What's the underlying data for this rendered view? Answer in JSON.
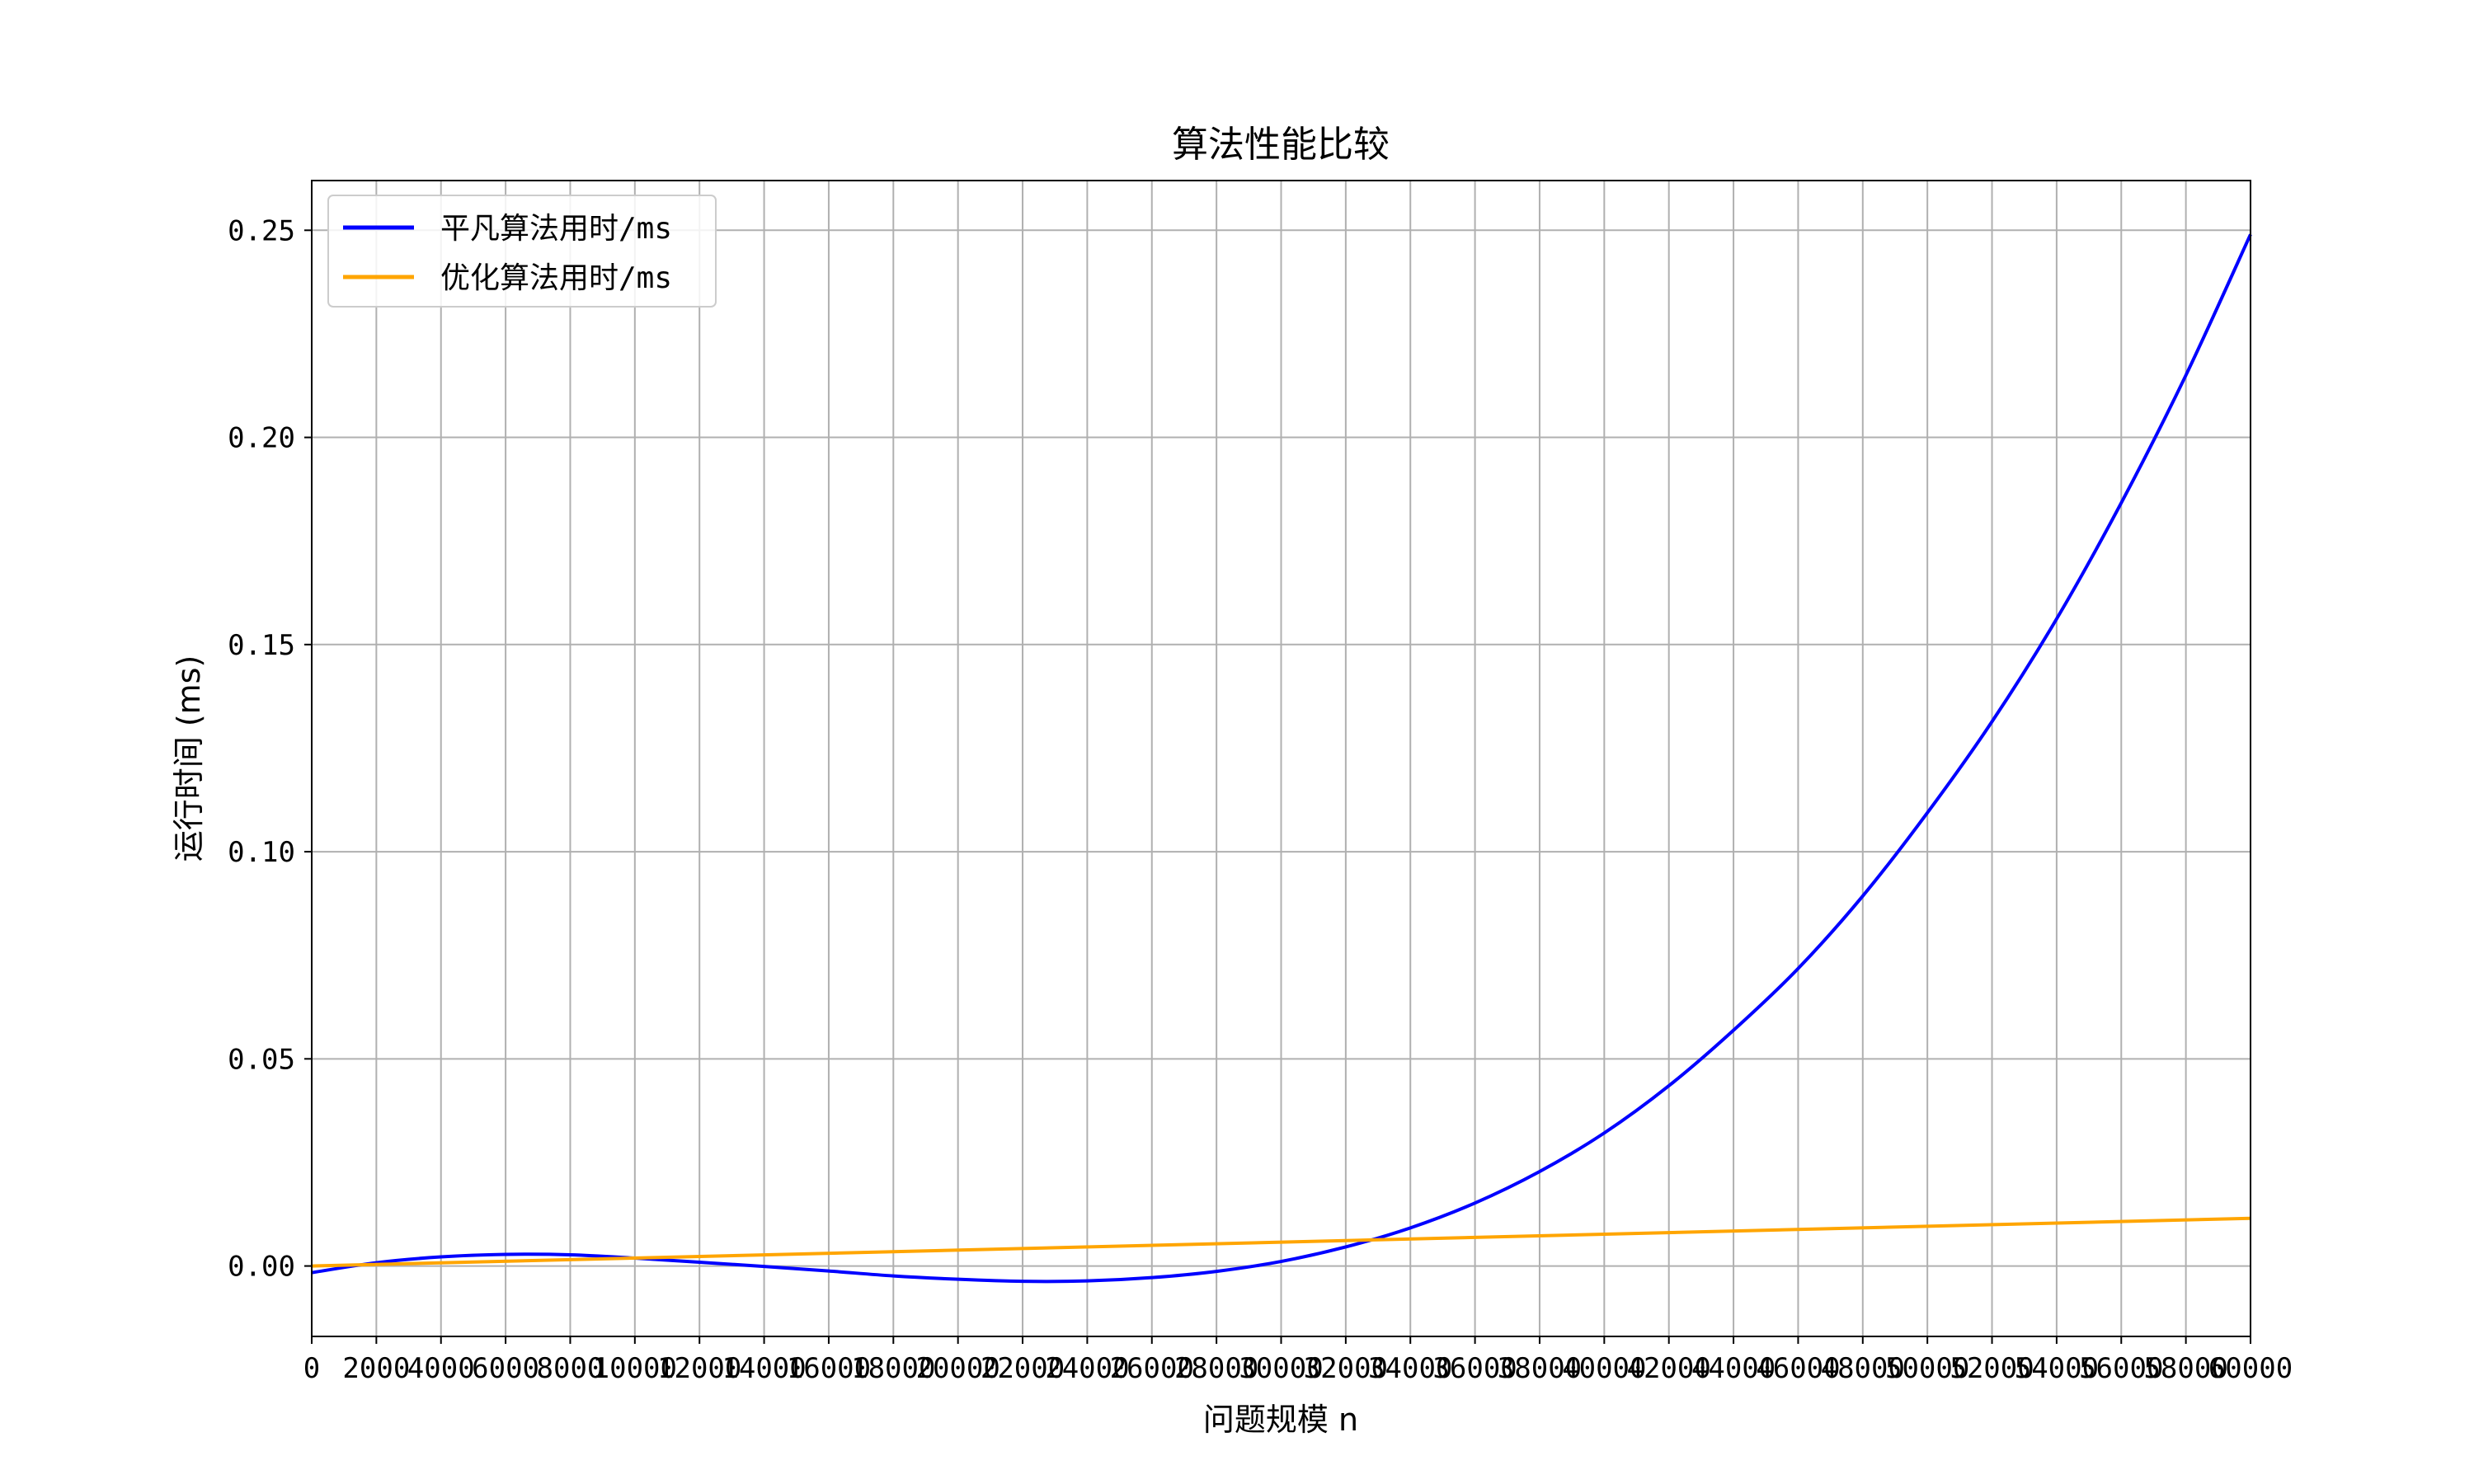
{
  "chart_data": {
    "type": "line",
    "title": "算法性能比较",
    "xlabel": "问题规模 n",
    "ylabel": "运行时间 (ms)",
    "xlim": [
      0,
      60000
    ],
    "ylim": [
      -0.017,
      0.262
    ],
    "x_ticks": [
      0,
      2000,
      4000,
      6000,
      8000,
      10000,
      12000,
      14000,
      16000,
      18000,
      20000,
      22000,
      24000,
      26000,
      28000,
      30000,
      32000,
      34000,
      36000,
      38000,
      40000,
      42000,
      44000,
      46000,
      48000,
      50000,
      52000,
      54000,
      56000,
      58000,
      60000
    ],
    "x_tick_labels": [
      "0",
      "2000",
      "4000",
      "6000",
      "8000",
      "10000",
      "12000",
      "14000",
      "16000",
      "18000",
      "20000",
      "22000",
      "24000",
      "26000",
      "28000",
      "30000",
      "32000",
      "34000",
      "36000",
      "38000",
      "40000",
      "42000",
      "44000",
      "46000",
      "48000",
      "50000",
      "52000",
      "54000",
      "56000",
      "58000",
      "60000"
    ],
    "y_ticks": [
      0.0,
      0.05,
      0.1,
      0.15,
      0.2,
      0.25
    ],
    "y_tick_labels": [
      "0.00",
      "0.05",
      "0.10",
      "0.15",
      "0.20",
      "0.25"
    ],
    "grid": true,
    "legend_position": "top-left",
    "series": [
      {
        "name": "平凡算法用时/ms",
        "color": "#0000ff",
        "x": [
          0,
          2000,
          4000,
          6000,
          8000,
          10000,
          12000,
          14000,
          16000,
          18000,
          20000,
          22000,
          24000,
          26000,
          28000,
          30000,
          32000,
          34000,
          36000,
          38000,
          40000,
          42000,
          44000,
          46000,
          48000,
          50000,
          52000,
          54000,
          56000,
          58000,
          60000
        ],
        "y": [
          -0.0016,
          0.0008,
          0.0022,
          0.0028,
          0.0027,
          0.0019,
          0.0009,
          -0.0001,
          -0.0012,
          -0.0024,
          -0.0032,
          -0.0037,
          -0.0036,
          -0.0028,
          -0.0013,
          0.0011,
          0.0046,
          0.0092,
          0.0152,
          0.0228,
          0.0321,
          0.0435,
          0.0569,
          0.0718,
          0.0893,
          0.1094,
          0.1314,
          0.1562,
          0.1842,
          0.215,
          0.249
        ]
      },
      {
        "name": "优化算法用时/ms",
        "color": "#ffa500",
        "x": [
          0,
          60000
        ],
        "y": [
          0.0,
          0.0115
        ]
      }
    ]
  }
}
